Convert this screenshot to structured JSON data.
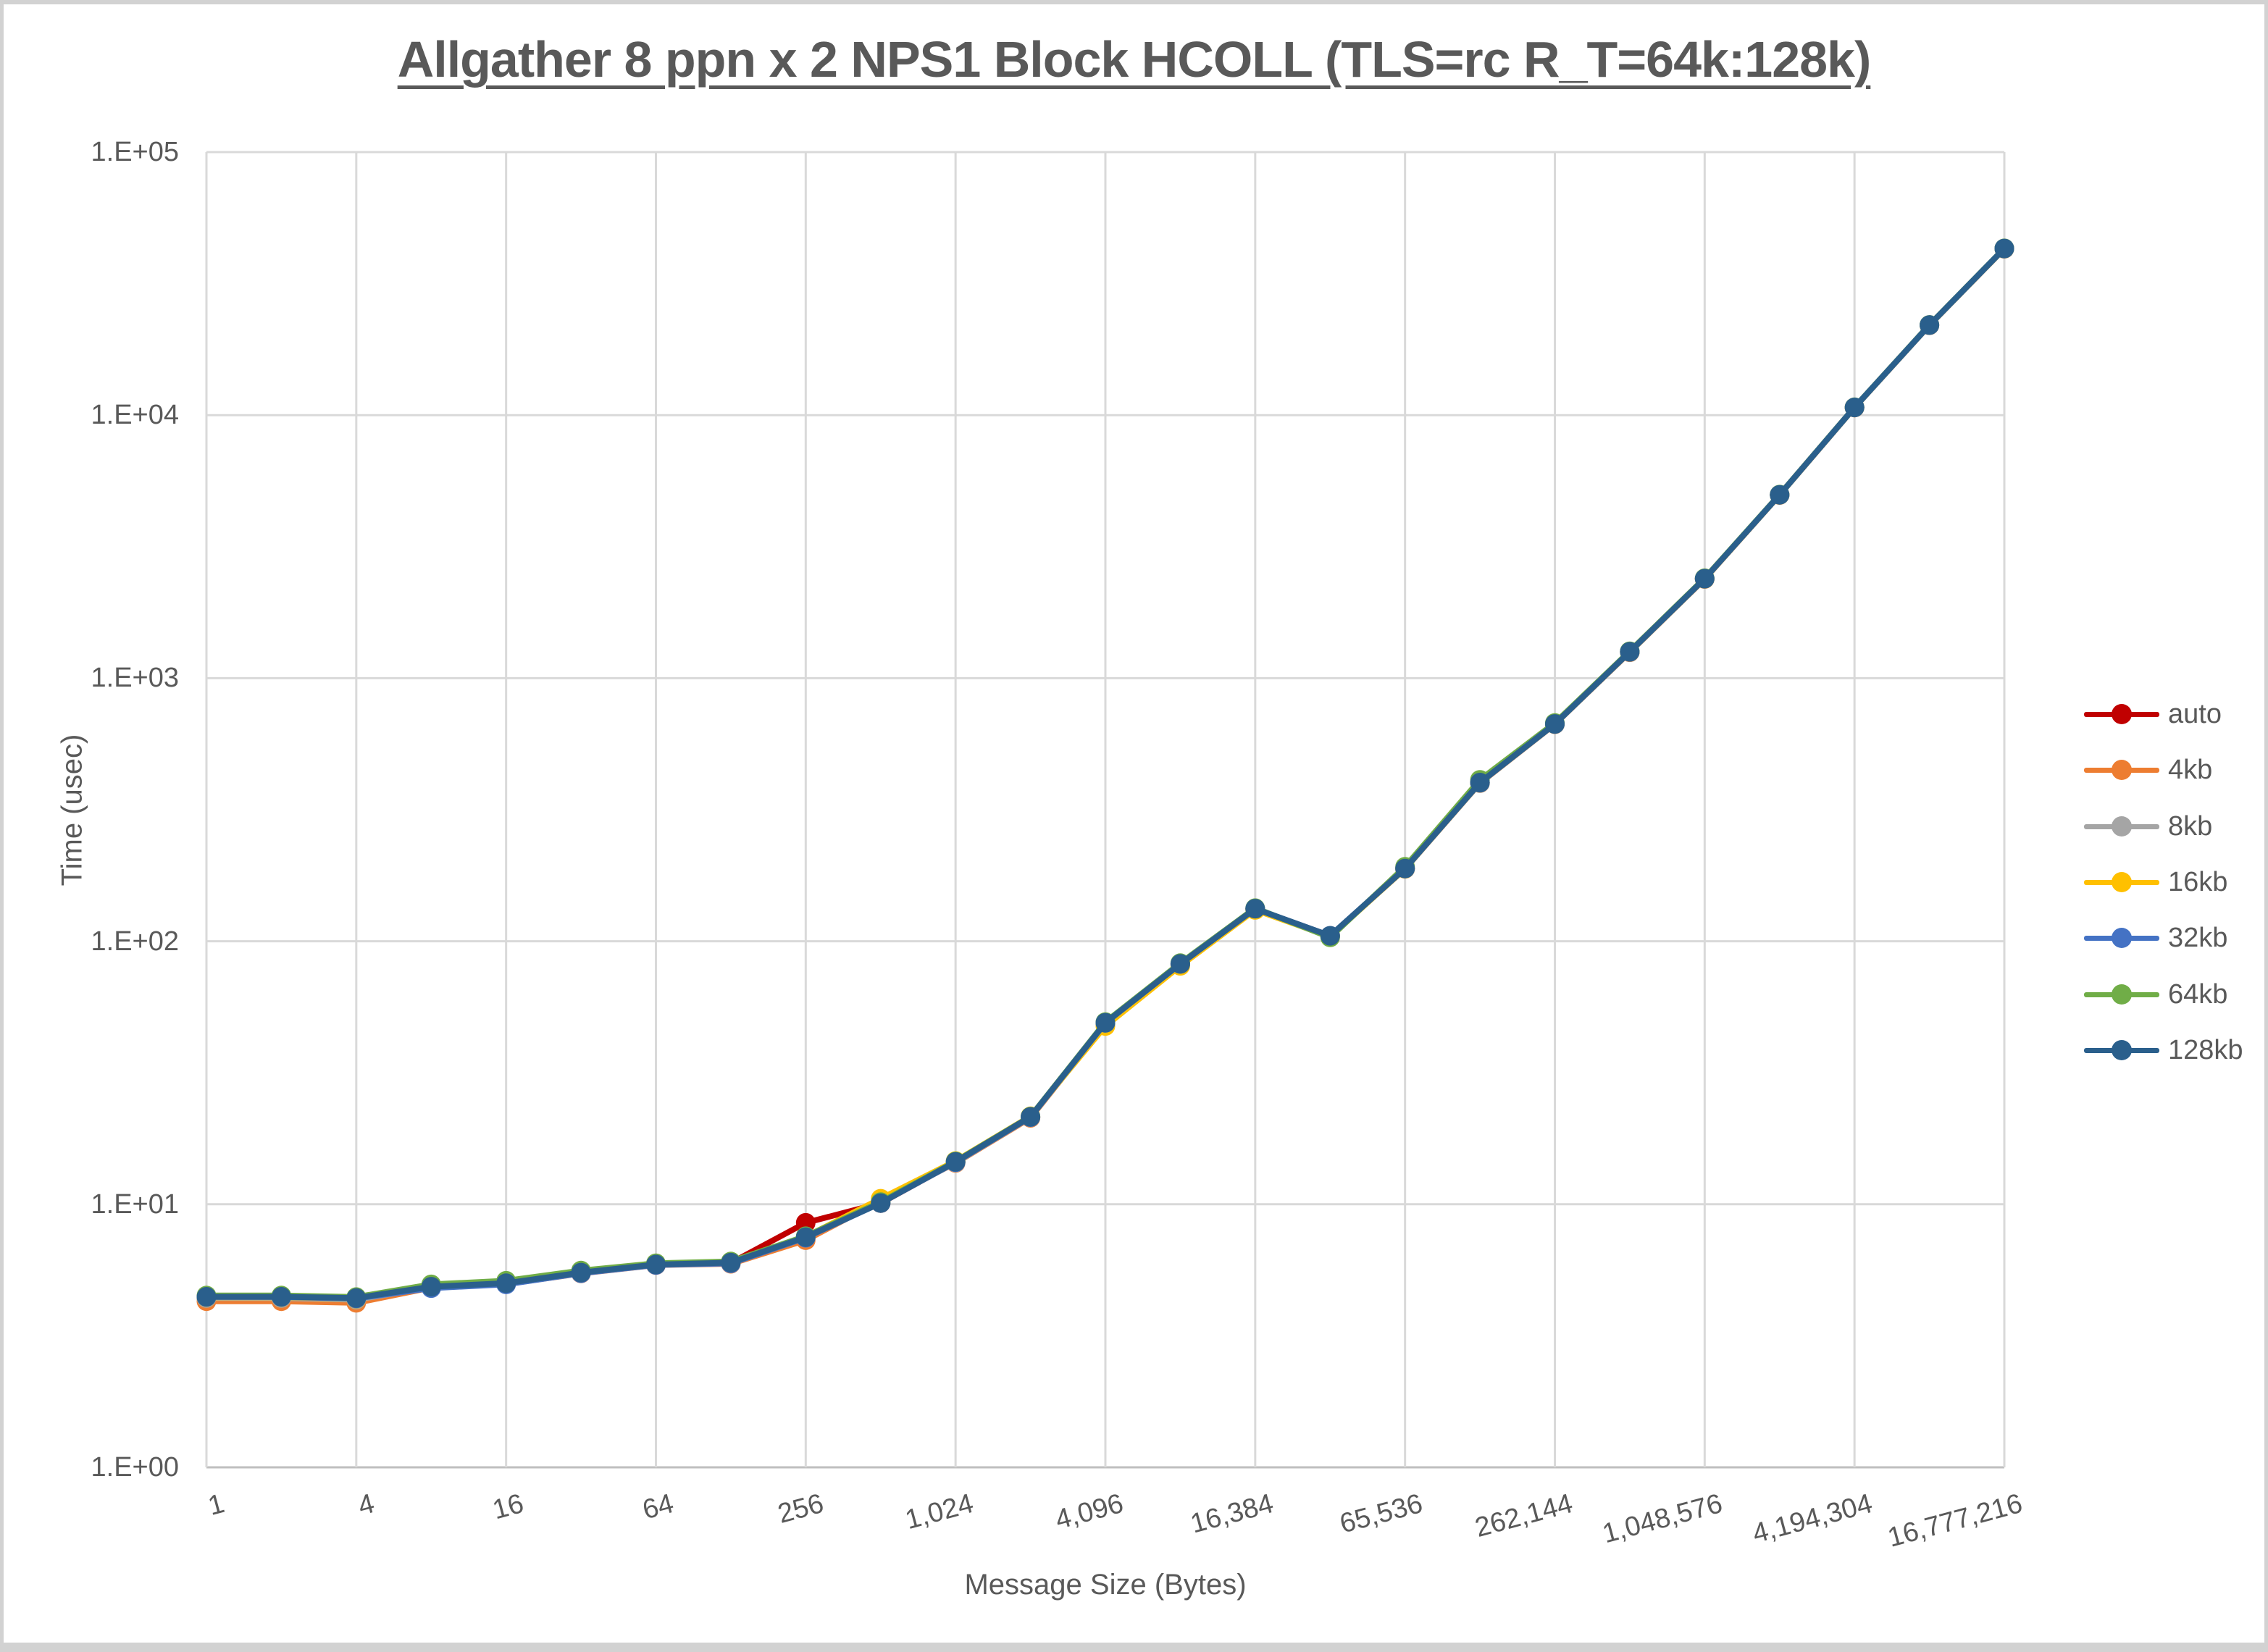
{
  "title": "Allgather 8 ppn x 2 NPS1 Block HCOLL (TLS=rc R_T=64k:128k)",
  "colors": {
    "grid": "#d9d9d9",
    "axis_line": "#bfbfbf",
    "text": "#595959",
    "frame": "#d2d2d2",
    "background": "#ffffff"
  },
  "chart_data": {
    "type": "line",
    "title": "Allgather 8 ppn x 2 NPS1 Block HCOLL (TLS=rc R_T=64k:128k)",
    "xlabel": "Message Size (Bytes)",
    "ylabel": "Time (usec)",
    "x_scale": "log2",
    "y_scale": "log10",
    "ylim": [
      1,
      100000
    ],
    "grid": true,
    "legend_position": "right",
    "y_tick_labels": [
      "1.E+00",
      "1.E+01",
      "1.E+02",
      "1.E+03",
      "1.E+04",
      "1.E+05"
    ],
    "x": [
      1,
      2,
      4,
      8,
      16,
      32,
      64,
      128,
      256,
      512,
      1024,
      2048,
      4096,
      8192,
      16384,
      32768,
      65536,
      131072,
      262144,
      524288,
      1048576,
      2097152,
      4194304,
      8388608,
      16777216
    ],
    "x_tick_labels": [
      "1",
      "4",
      "16",
      "64",
      "256",
      "1,024",
      "4,096",
      "16,384",
      "65,536",
      "262,144",
      "1,048,576",
      "4,194,304",
      "16,777,216"
    ],
    "series": [
      {
        "name": "auto",
        "color": "#c00000",
        "values": [
          4.42,
          4.42,
          4.36,
          4.84,
          5.0,
          5.49,
          5.89,
          5.98,
          8.5,
          10.1,
          14.45,
          21.4,
          48.8,
          81.9,
          132.8,
          104.8,
          188.8,
          400,
          670,
          1258,
          2388,
          4978,
          10695,
          21990,
          42960
        ]
      },
      {
        "name": "4kb",
        "color": "#ed7d31",
        "values": [
          4.28,
          4.28,
          4.22,
          4.82,
          4.97,
          5.46,
          5.87,
          5.94,
          7.3,
          10.3,
          14.35,
          21.3,
          48.5,
          81.5,
          132.2,
          104.6,
          188.5,
          399,
          668,
          1255,
          2382,
          4970,
          10680,
          21960,
          42900
        ]
      },
      {
        "name": "8kb",
        "color": "#a5a5a5",
        "values": [
          4.4,
          4.4,
          4.34,
          4.84,
          4.99,
          5.48,
          5.89,
          5.97,
          7.48,
          10.15,
          14.42,
          21.42,
          48.8,
          81.8,
          132.6,
          104.8,
          188.7,
          400,
          669,
          1257,
          2386,
          4975,
          10690,
          21980,
          42940
        ]
      },
      {
        "name": "16kb",
        "color": "#ffc000",
        "values": [
          4.43,
          4.43,
          4.37,
          4.86,
          5.01,
          5.51,
          5.9,
          5.99,
          7.52,
          10.5,
          14.6,
          21.6,
          47.6,
          80.6,
          131.5,
          104.2,
          188.6,
          400,
          670,
          1258,
          2386,
          4976,
          10692,
          21985,
          42950
        ]
      },
      {
        "name": "32kb",
        "color": "#4472c4",
        "values": [
          4.44,
          4.44,
          4.38,
          4.8,
          4.96,
          5.47,
          5.88,
          5.96,
          7.46,
          10.12,
          14.44,
          21.44,
          48.9,
          82.0,
          132.9,
          104.9,
          189.0,
          400,
          670,
          1259,
          2389,
          4979,
          10698,
          21995,
          42980
        ]
      },
      {
        "name": "64kb",
        "color": "#70ad47",
        "values": [
          4.5,
          4.5,
          4.44,
          4.96,
          5.12,
          5.6,
          5.97,
          6.06,
          7.56,
          10.2,
          14.55,
          21.55,
          49.3,
          82.6,
          133.6,
          103.4,
          192.0,
          411,
          676,
          1266,
          2398,
          4988,
          10715,
          22030,
          43060
        ]
      },
      {
        "name": "128kb",
        "color": "#2a5f8c",
        "values": [
          4.45,
          4.45,
          4.4,
          4.86,
          5.01,
          5.5,
          5.9,
          6.0,
          7.5,
          10.1,
          14.5,
          21.5,
          49.0,
          82.0,
          133.0,
          104.9,
          189.0,
          401,
          670,
          1260,
          2390,
          4980,
          10700,
          22000,
          43000
        ]
      }
    ]
  }
}
